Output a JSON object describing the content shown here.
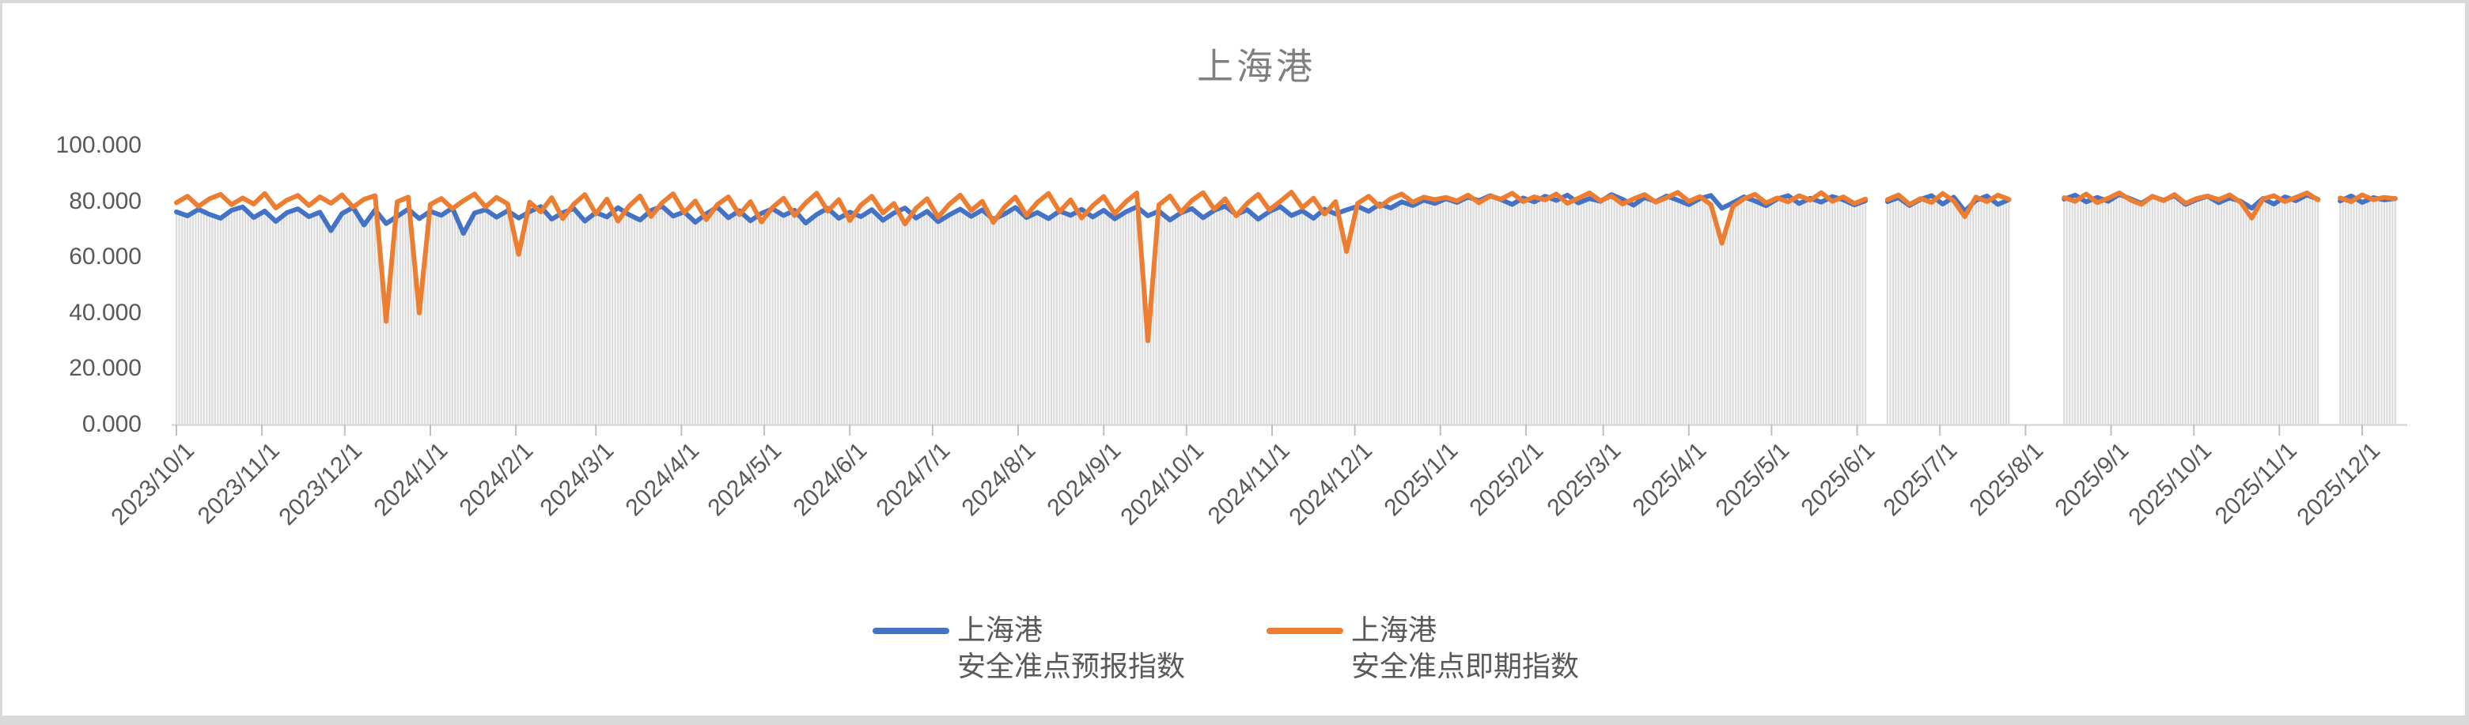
{
  "window": {
    "frame_color": "#d9d9d9",
    "canvas_color": "#ffffff"
  },
  "text_colors": {
    "title": "#7f7f7f",
    "axis_labels": "#595959",
    "legend": "#595959"
  },
  "chart_data": {
    "type": "line",
    "title": "上海港",
    "xlabel": "",
    "ylabel": "",
    "ylim": [
      0,
      100
    ],
    "grid": "off",
    "legend_position": "bottom",
    "x_axis_start_date": "2023/10/1",
    "x_axis_end_day": 804,
    "sample_interval_days": 4,
    "drop_lines": "daily vertical gray lines from axis to series minimum",
    "drop_line_color": "#dcdcdc",
    "axis_line_color": "#d9d9d9",
    "tick_color": "#bfbfbf",
    "y_ticks": [
      {
        "label": "100.000",
        "value": 100
      },
      {
        "label": "80.000",
        "value": 80
      },
      {
        "label": "60.000",
        "value": 60
      },
      {
        "label": "40.000",
        "value": 40
      },
      {
        "label": "20.000",
        "value": 20
      },
      {
        "label": "0.000",
        "value": 0
      }
    ],
    "x_ticks": [
      {
        "label": "2023/10/1",
        "day": 0
      },
      {
        "label": "2023/11/1",
        "day": 31
      },
      {
        "label": "2023/12/1",
        "day": 61
      },
      {
        "label": "2024/1/1",
        "day": 92
      },
      {
        "label": "2024/2/1",
        "day": 123
      },
      {
        "label": "2024/3/1",
        "day": 152
      },
      {
        "label": "2024/4/1",
        "day": 183
      },
      {
        "label": "2024/5/1",
        "day": 213
      },
      {
        "label": "2024/6/1",
        "day": 244
      },
      {
        "label": "2024/7/1",
        "day": 274
      },
      {
        "label": "2024/8/1",
        "day": 305
      },
      {
        "label": "2024/9/1",
        "day": 336
      },
      {
        "label": "2024/10/1",
        "day": 366
      },
      {
        "label": "2024/11/1",
        "day": 397
      },
      {
        "label": "2024/12/1",
        "day": 427
      },
      {
        "label": "2025/1/1",
        "day": 458
      },
      {
        "label": "2025/2/1",
        "day": 489
      },
      {
        "label": "2025/3/1",
        "day": 517
      },
      {
        "label": "2025/4/1",
        "day": 548
      },
      {
        "label": "2025/5/1",
        "day": 578
      },
      {
        "label": "2025/6/1",
        "day": 609
      },
      {
        "label": "2025/7/1",
        "day": 639
      },
      {
        "label": "2025/8/1",
        "day": 670
      },
      {
        "label": "2025/9/1",
        "day": 701
      },
      {
        "label": "2025/10/1",
        "day": 731
      },
      {
        "label": "2025/11/1",
        "day": 762
      },
      {
        "label": "2025/12/1",
        "day": 792
      }
    ],
    "data_gaps": [
      "2025/6/5-2025/6/10",
      "2025/7/29-2025/8/12",
      "2025/11/17"
    ],
    "notable_dips_spot_index": [
      {
        "date": "2023/12/17",
        "value": 37
      },
      {
        "date": "2023/12/29",
        "value": 40
      },
      {
        "date": "2024/1/31",
        "value": 61
      },
      {
        "date": "2024/9/16",
        "value": 30
      },
      {
        "date": "2024/11/28",
        "value": 62
      },
      {
        "date": "2025/4/14",
        "value": 65
      },
      {
        "date": "2025/10/8",
        "value": 74
      }
    ],
    "series": [
      {
        "name": "上海港 安全准点预报指数",
        "legend_line1": "上海港",
        "legend_line2": "安全准点预报指数",
        "color": "#4472C4",
        "values": [
          76.2,
          74.8,
          77.1,
          75.3,
          73.9,
          76.8,
          78.0,
          74.2,
          76.5,
          72.8,
          75.9,
          77.3,
          74.5,
          76.1,
          69.5,
          75.6,
          77.8,
          71.5,
          76.9,
          72.0,
          74.6,
          77.2,
          73.8,
          76.4,
          75.0,
          77.6,
          68.5,
          75.8,
          77.0,
          74.3,
          76.6,
          74.0,
          76.3,
          78.1,
          73.6,
          75.9,
          77.4,
          72.9,
          76.0,
          74.4,
          77.7,
          75.2,
          73.3,
          76.7,
          78.2,
          74.7,
          76.2,
          72.5,
          75.5,
          77.9,
          74.1,
          76.6,
          73.0,
          75.7,
          77.3,
          74.9,
          76.8,
          72.2,
          75.3,
          77.5,
          73.9,
          76.1,
          74.5,
          77.0,
          73.2,
          75.8,
          77.6,
          74.0,
          76.4,
          72.7,
          75.1,
          77.2,
          74.6,
          76.9,
          73.5,
          75.4,
          77.8,
          74.2,
          76.0,
          73.8,
          76.5,
          75.0,
          77.1,
          74.4,
          76.8,
          73.7,
          76.2,
          78.0,
          74.8,
          76.5,
          73.3,
          75.9,
          77.4,
          74.1,
          76.7,
          78.3,
          75.2,
          77.0,
          73.6,
          76.3,
          78.1,
          74.9,
          76.6,
          73.9,
          77.2,
          75.5,
          76.9,
          78.2,
          76.4,
          79.0,
          77.6,
          79.8,
          78.5,
          80.4,
          79.2,
          80.9,
          79.6,
          81.5,
          80.2,
          82.0,
          80.6,
          78.9,
          81.2,
          79.8,
          81.8,
          80.3,
          82.2,
          79.4,
          81.0,
          80.0,
          82.4,
          80.7,
          78.6,
          81.4,
          79.9,
          81.9,
          80.4,
          78.8,
          80.9,
          82.1,
          77.5,
          79.5,
          81.6,
          80.1,
          78.4,
          80.8,
          82.0,
          79.2,
          81.1,
          79.7,
          81.7,
          80.5,
          78.7,
          80.2,
          null,
          79.9,
          81.3,
          78.5,
          80.7,
          82.0,
          79.0,
          81.5,
          76.5,
          80.3,
          81.9,
          78.9,
          80.6,
          null,
          null,
          null,
          null,
          80.8,
          82.2,
          79.8,
          81.4,
          80.0,
          82.5,
          80.9,
          79.3,
          81.7,
          80.4,
          82.0,
          78.9,
          80.6,
          81.8,
          79.5,
          81.2,
          80.0,
          77.5,
          81.0,
          79.0,
          81.6,
          80.2,
          82.3,
          80.7,
          null,
          80.1,
          81.9,
          79.6,
          81.3,
          80.5,
          81.0
        ]
      },
      {
        "name": "上海港 安全准点即期指数",
        "legend_line1": "上海港",
        "legend_line2": "安全准点即期指数",
        "color": "#ED7D31",
        "values": [
          79.5,
          81.8,
          78.2,
          80.9,
          82.5,
          78.8,
          81.2,
          79.0,
          82.8,
          77.6,
          80.4,
          82.1,
          78.5,
          81.6,
          79.3,
          82.3,
          77.9,
          80.7,
          82.0,
          37.0,
          79.8,
          81.5,
          40.0,
          78.9,
          81.0,
          77.4,
          80.2,
          82.6,
          78.0,
          81.4,
          79.1,
          61.0,
          79.7,
          76.2,
          81.3,
          73.8,
          79.0,
          82.4,
          75.5,
          80.8,
          72.9,
          78.3,
          81.9,
          74.6,
          79.5,
          82.7,
          76.0,
          80.1,
          73.4,
          78.8,
          81.6,
          75.2,
          79.9,
          72.6,
          77.8,
          81.1,
          74.9,
          79.4,
          82.9,
          76.5,
          80.6,
          73.1,
          78.6,
          81.8,
          75.8,
          79.2,
          71.9,
          77.5,
          80.9,
          74.3,
          78.9,
          82.2,
          76.7,
          80.0,
          72.4,
          77.9,
          81.5,
          75.0,
          79.6,
          82.8,
          76.3,
          80.5,
          74.0,
          78.4,
          81.7,
          75.6,
          79.8,
          83.0,
          30.0,
          78.7,
          81.9,
          76.1,
          80.3,
          83.1,
          77.2,
          80.9,
          74.8,
          79.3,
          82.5,
          76.9,
          80.0,
          83.3,
          77.7,
          81.1,
          75.4,
          79.9,
          62.0,
          79.2,
          81.8,
          78.1,
          80.9,
          82.6,
          79.7,
          81.5,
          80.6,
          81.4,
          80.1,
          82.2,
          79.5,
          81.8,
          80.8,
          82.9,
          79.9,
          81.6,
          80.5,
          82.6,
          79.3,
          81.1,
          83.0,
          80.2,
          81.9,
          79.0,
          80.9,
          82.4,
          79.7,
          81.3,
          83.2,
          80.0,
          81.7,
          78.8,
          65.0,
          78.2,
          80.9,
          82.5,
          79.4,
          81.2,
          79.8,
          82.0,
          80.4,
          83.1,
          80.0,
          81.6,
          79.2,
          80.8,
          null,
          80.6,
          82.3,
          78.9,
          81.0,
          79.6,
          82.8,
          80.1,
          74.5,
          81.5,
          79.9,
          82.2,
          80.7,
          null,
          null,
          null,
          null,
          81.3,
          80.0,
          82.6,
          79.5,
          81.1,
          83.0,
          80.5,
          78.9,
          81.8,
          80.2,
          82.4,
          79.3,
          81.0,
          81.9,
          80.6,
          82.3,
          79.6,
          74.0,
          80.8,
          82.0,
          79.9,
          81.4,
          83.0,
          80.5,
          null,
          81.2,
          79.9,
          82.3,
          80.6,
          81.4,
          80.9
        ]
      }
    ]
  }
}
